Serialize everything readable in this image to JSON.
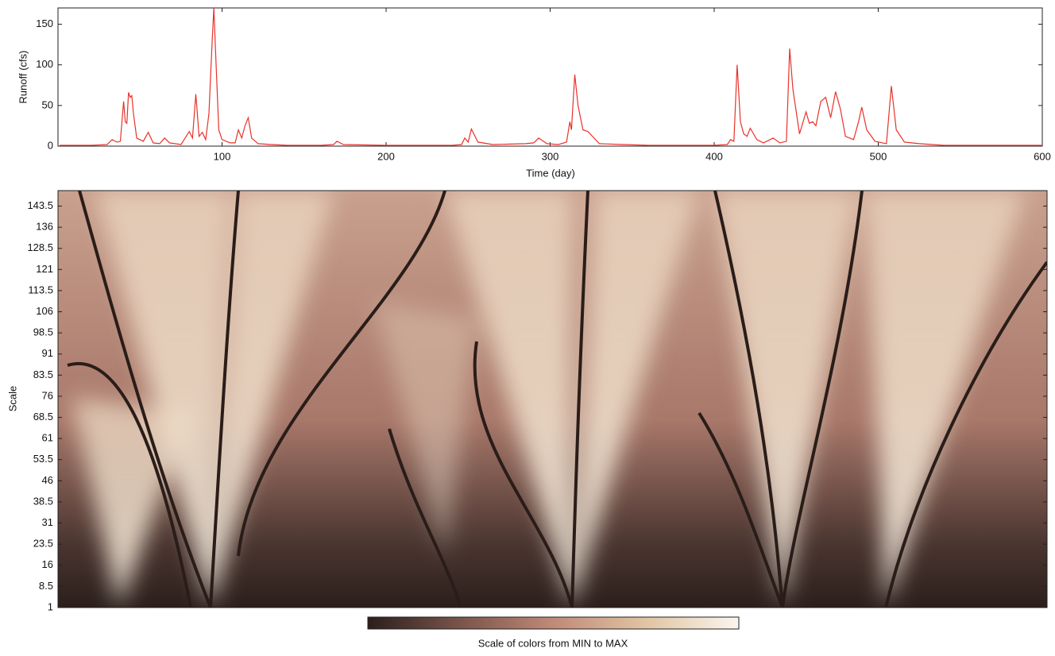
{
  "chart_data": [
    {
      "type": "line",
      "x_label": "Time (day)",
      "y_label": "Runoff (cfs)",
      "xlim": [
        0,
        600
      ],
      "ylim": [
        0,
        170
      ],
      "xticks": [
        100,
        200,
        300,
        400,
        500,
        600
      ],
      "yticks": [
        0,
        50,
        100,
        150
      ],
      "series": [
        {
          "color": "#e8322a",
          "x": [
            1,
            10,
            20,
            30,
            33,
            36,
            38,
            40,
            41,
            42,
            43,
            44,
            45,
            46,
            48,
            52,
            55,
            58,
            62,
            65,
            68,
            75,
            80,
            82,
            84,
            86,
            88,
            90,
            92,
            94,
            95,
            96,
            98,
            100,
            105,
            108,
            110,
            112,
            114,
            116,
            118,
            122,
            130,
            140,
            160,
            168,
            170,
            174,
            200,
            240,
            246,
            248,
            250,
            252,
            256,
            265,
            285,
            290,
            293,
            298,
            305,
            310,
            312,
            313,
            315,
            317,
            320,
            323,
            330,
            345,
            360,
            380,
            400,
            408,
            410,
            412,
            414,
            416,
            418,
            420,
            422,
            426,
            430,
            436,
            440,
            444,
            446,
            448,
            452,
            456,
            458,
            460,
            462,
            465,
            468,
            471,
            474,
            477,
            480,
            485,
            488,
            490,
            493,
            498,
            505,
            508,
            511,
            516,
            525,
            540,
            560,
            580,
            600
          ],
          "values": [
            1,
            1,
            1,
            2,
            8,
            5,
            6,
            55,
            30,
            28,
            66,
            60,
            62,
            40,
            10,
            6,
            17,
            4,
            3,
            10,
            4,
            2,
            18,
            10,
            64,
            12,
            17,
            8,
            40,
            130,
            170,
            120,
            20,
            8,
            4,
            4,
            20,
            10,
            25,
            35,
            10,
            3,
            2,
            1,
            1,
            2,
            6,
            2,
            1,
            1,
            2,
            10,
            5,
            21,
            5,
            2,
            3,
            4,
            10,
            3,
            2,
            5,
            30,
            20,
            88,
            50,
            20,
            18,
            3,
            2,
            1,
            1,
            1,
            2,
            8,
            6,
            100,
            30,
            15,
            12,
            22,
            8,
            4,
            10,
            4,
            6,
            120,
            70,
            15,
            42,
            28,
            30,
            25,
            55,
            60,
            35,
            67,
            45,
            12,
            8,
            30,
            48,
            20,
            6,
            3,
            74,
            20,
            5,
            3,
            1,
            1,
            1,
            1
          ]
        }
      ]
    },
    {
      "type": "heatmap",
      "y_label": "Scale",
      "xlim": [
        0,
        600
      ],
      "ylim": [
        1,
        149
      ],
      "yticks": [
        1,
        8.5,
        16,
        23.5,
        31,
        38.5,
        46,
        53.5,
        61,
        68.5,
        76,
        83.5,
        91,
        98.5,
        106,
        113.5,
        121,
        128.5,
        136,
        143.5
      ],
      "colorbar_label": "Scale of colors from MIN to MAX",
      "colormap": [
        "#2b1f1b",
        "#7a544b",
        "#c08a78",
        "#e0c4a4",
        "#fbf6ee"
      ]
    }
  ]
}
